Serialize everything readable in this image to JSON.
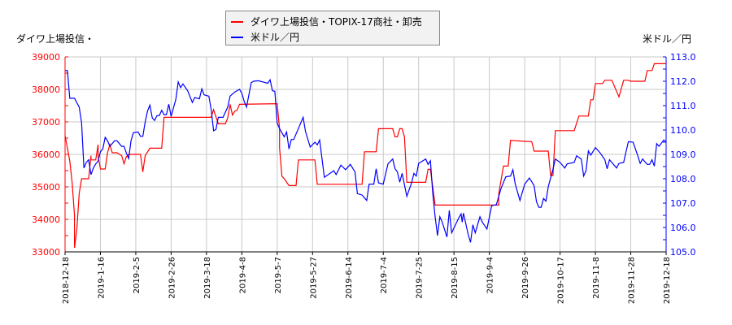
{
  "chart_data": {
    "type": "line",
    "title": "",
    "legend": {
      "placement": "top-center",
      "entries": [
        "ダイワ上場投信・TOPIX-17商社・卸売",
        "米ドル／円"
      ]
    },
    "y_left_label": "ダイワ上場投信・",
    "y_right_label": "米ドル／円",
    "y_left": {
      "range": [
        33000,
        39000
      ],
      "ticks": [
        "33000",
        "34000",
        "35000",
        "36000",
        "37000",
        "38000",
        "39000"
      ],
      "color": "#ff0000"
    },
    "y_right": {
      "range": [
        105.0,
        113.0
      ],
      "ticks": [
        "105.0",
        "106.0",
        "107.0",
        "108.0",
        "109.0",
        "110.0",
        "111.0",
        "112.0",
        "113.0"
      ],
      "color": "#0000ff"
    },
    "x_range": [
      0,
      255
    ],
    "x_ticks": [
      {
        "i": 0,
        "label": "2018-12-18"
      },
      {
        "i": 15,
        "label": "2019-1-16"
      },
      {
        "i": 30,
        "label": "2019-2-5"
      },
      {
        "i": 45,
        "label": "2019-2-26"
      },
      {
        "i": 60,
        "label": "2019-3-18"
      },
      {
        "i": 75,
        "label": "2019-4-8"
      },
      {
        "i": 90,
        "label": "2019-5-7"
      },
      {
        "i": 105,
        "label": "2019-5-27"
      },
      {
        "i": 120,
        "label": "2019-6-14"
      },
      {
        "i": 135,
        "label": "2019-7-4"
      },
      {
        "i": 150,
        "label": "2019-7-25"
      },
      {
        "i": 165,
        "label": "2019-8-15"
      },
      {
        "i": 180,
        "label": "2019-9-4"
      },
      {
        "i": 195,
        "label": "2019-9-26"
      },
      {
        "i": 210,
        "label": "2019-10-17"
      },
      {
        "i": 225,
        "label": "2019-11-8"
      },
      {
        "i": 240,
        "label": "2019-11-28"
      },
      {
        "i": 255,
        "label": "2019-12-18"
      }
    ],
    "grid": true,
    "series": [
      {
        "name": "ダイワ上場投信・TOPIX-17商社・卸売",
        "axis": "left",
        "color": "#ff0000",
        "points": [
          [
            0,
            36580
          ],
          [
            2,
            35800
          ],
          [
            3,
            35125
          ],
          [
            4,
            34125
          ],
          [
            4,
            33125
          ],
          [
            5,
            33700
          ],
          [
            6,
            34800
          ],
          [
            7,
            35250
          ],
          [
            10,
            35250
          ],
          [
            11,
            35960
          ],
          [
            11,
            35830
          ],
          [
            13,
            35830
          ],
          [
            14,
            36300
          ],
          [
            14,
            35960
          ],
          [
            15,
            35550
          ],
          [
            17,
            35550
          ],
          [
            18,
            36050
          ],
          [
            19,
            36300
          ],
          [
            20,
            36050
          ],
          [
            22,
            36050
          ],
          [
            24,
            35960
          ],
          [
            25,
            35710
          ],
          [
            26,
            35925
          ],
          [
            27,
            36000
          ],
          [
            32,
            36000
          ],
          [
            33,
            35460
          ],
          [
            34,
            35960
          ],
          [
            36,
            36190
          ],
          [
            41,
            36190
          ],
          [
            42,
            37140
          ],
          [
            62,
            37140
          ],
          [
            63,
            37375
          ],
          [
            65,
            36940
          ],
          [
            68,
            36940
          ],
          [
            69,
            37125
          ],
          [
            70,
            37540
          ],
          [
            71,
            37210
          ],
          [
            72,
            37330
          ],
          [
            73,
            37360
          ],
          [
            74,
            37540
          ],
          [
            90,
            37560
          ],
          [
            91,
            36790
          ],
          [
            91,
            36210
          ],
          [
            92,
            35330
          ],
          [
            93,
            35250
          ],
          [
            95,
            35040
          ],
          [
            98,
            35040
          ],
          [
            99,
            35830
          ],
          [
            106,
            35830
          ],
          [
            107,
            35080
          ],
          [
            126,
            35080
          ],
          [
            127,
            36080
          ],
          [
            132,
            36080
          ],
          [
            133,
            36790
          ],
          [
            139,
            36790
          ],
          [
            140,
            36540
          ],
          [
            141,
            36540
          ],
          [
            142,
            36790
          ],
          [
            143,
            36790
          ],
          [
            144,
            36540
          ],
          [
            145,
            35140
          ],
          [
            153,
            35140
          ],
          [
            154,
            35540
          ],
          [
            155,
            35540
          ],
          [
            157,
            34440
          ],
          [
            184,
            34440
          ],
          [
            184,
            34790
          ],
          [
            186,
            35640
          ],
          [
            188,
            35640
          ],
          [
            189,
            36430
          ],
          [
            198,
            36390
          ],
          [
            199,
            36100
          ],
          [
            205,
            36100
          ],
          [
            206,
            35350
          ],
          [
            207,
            35350
          ],
          [
            208,
            36730
          ],
          [
            216,
            36730
          ],
          [
            218,
            37180
          ],
          [
            222,
            37180
          ],
          [
            223,
            37680
          ],
          [
            224,
            37680
          ],
          [
            225,
            38180
          ],
          [
            228,
            38180
          ],
          [
            229,
            38280
          ],
          [
            232,
            38280
          ],
          [
            235,
            37770
          ],
          [
            237,
            38280
          ],
          [
            239,
            38280
          ],
          [
            240,
            38250
          ],
          [
            246,
            38250
          ],
          [
            247,
            38580
          ],
          [
            249,
            38580
          ],
          [
            250,
            38790
          ],
          [
            255,
            38790
          ]
        ]
      },
      {
        "name": "米ドル／円",
        "axis": "right",
        "color": "#0000ff",
        "points": [
          [
            0,
            112.44
          ],
          [
            1,
            112.44
          ],
          [
            2,
            111.3
          ],
          [
            4,
            111.3
          ],
          [
            6,
            110.94
          ],
          [
            7,
            110.3
          ],
          [
            8,
            108.44
          ],
          [
            9,
            108.67
          ],
          [
            10,
            108.78
          ],
          [
            11,
            108.17
          ],
          [
            12,
            108.44
          ],
          [
            13,
            108.61
          ],
          [
            14,
            108.72
          ],
          [
            15,
            109.11
          ],
          [
            16,
            109.22
          ],
          [
            17,
            109.7
          ],
          [
            18,
            109.56
          ],
          [
            19,
            109.33
          ],
          [
            21,
            109.56
          ],
          [
            22,
            109.56
          ],
          [
            24,
            109.33
          ],
          [
            25,
            109.33
          ],
          [
            26,
            109.06
          ],
          [
            27,
            108.83
          ],
          [
            28,
            109.56
          ],
          [
            29,
            109.89
          ],
          [
            31,
            109.92
          ],
          [
            32,
            109.74
          ],
          [
            33,
            109.74
          ],
          [
            34,
            110.33
          ],
          [
            35,
            110.78
          ],
          [
            36,
            111.02
          ],
          [
            37,
            110.5
          ],
          [
            38,
            110.39
          ],
          [
            39,
            110.59
          ],
          [
            40,
            110.59
          ],
          [
            41,
            110.81
          ],
          [
            42,
            110.63
          ],
          [
            43,
            110.63
          ],
          [
            44,
            111.06
          ],
          [
            45,
            110.56
          ],
          [
            47,
            111.26
          ],
          [
            48,
            111.97
          ],
          [
            49,
            111.74
          ],
          [
            50,
            111.89
          ],
          [
            52,
            111.61
          ],
          [
            54,
            111.13
          ],
          [
            55,
            111.33
          ],
          [
            57,
            111.28
          ],
          [
            58,
            111.69
          ],
          [
            59,
            111.44
          ],
          [
            61,
            111.39
          ],
          [
            62,
            110.83
          ],
          [
            63,
            109.97
          ],
          [
            64,
            110.02
          ],
          [
            65,
            110.52
          ],
          [
            67,
            110.52
          ],
          [
            69,
            110.94
          ],
          [
            70,
            111.39
          ],
          [
            72,
            111.56
          ],
          [
            74,
            111.67
          ],
          [
            75,
            111.5
          ],
          [
            76,
            111.17
          ],
          [
            77,
            110.94
          ],
          [
            79,
            111.94
          ],
          [
            80,
            112.0
          ],
          [
            82,
            112.02
          ],
          [
            86,
            111.92
          ],
          [
            87,
            112.06
          ],
          [
            88,
            111.61
          ],
          [
            89,
            111.59
          ],
          [
            90,
            110.28
          ],
          [
            91,
            110.06
          ],
          [
            93,
            109.72
          ],
          [
            94,
            109.92
          ],
          [
            95,
            109.22
          ],
          [
            96,
            109.61
          ],
          [
            97,
            109.61
          ],
          [
            99,
            110.06
          ],
          [
            101,
            110.52
          ],
          [
            102,
            109.94
          ],
          [
            104,
            109.3
          ],
          [
            106,
            109.5
          ],
          [
            107,
            109.39
          ],
          [
            108,
            109.59
          ],
          [
            110,
            108.06
          ],
          [
            114,
            108.33
          ],
          [
            115,
            108.17
          ],
          [
            117,
            108.56
          ],
          [
            119,
            108.37
          ],
          [
            121,
            108.59
          ],
          [
            123,
            108.28
          ],
          [
            124,
            107.39
          ],
          [
            126,
            107.33
          ],
          [
            128,
            107.11
          ],
          [
            129,
            107.78
          ],
          [
            131,
            107.78
          ],
          [
            132,
            108.41
          ],
          [
            133,
            107.83
          ],
          [
            135,
            107.78
          ],
          [
            137,
            108.61
          ],
          [
            139,
            108.81
          ],
          [
            140,
            108.41
          ],
          [
            141,
            108.28
          ],
          [
            142,
            107.86
          ],
          [
            143,
            108.22
          ],
          [
            145,
            107.28
          ],
          [
            147,
            107.83
          ],
          [
            148,
            108.22
          ],
          [
            149,
            108.11
          ],
          [
            150,
            108.63
          ],
          [
            153,
            108.81
          ],
          [
            154,
            108.59
          ],
          [
            155,
            108.74
          ],
          [
            156,
            107.39
          ],
          [
            157,
            106.44
          ],
          [
            158,
            105.67
          ],
          [
            159,
            106.44
          ],
          [
            160,
            106.22
          ],
          [
            162,
            105.61
          ],
          [
            163,
            106.7
          ],
          [
            164,
            105.78
          ],
          [
            167,
            106.39
          ],
          [
            168,
            106.56
          ],
          [
            168.5,
            106.22
          ],
          [
            169,
            106.59
          ],
          [
            171,
            105.72
          ],
          [
            172,
            105.39
          ],
          [
            173,
            106.11
          ],
          [
            174,
            105.78
          ],
          [
            176,
            106.44
          ],
          [
            177,
            106.22
          ],
          [
            179,
            105.94
          ],
          [
            181,
            106.89
          ],
          [
            183,
            106.94
          ],
          [
            185,
            107.61
          ],
          [
            187,
            108.08
          ],
          [
            189,
            108.11
          ],
          [
            190,
            108.37
          ],
          [
            191,
            107.78
          ],
          [
            193,
            107.11
          ],
          [
            195,
            107.78
          ],
          [
            197,
            108.03
          ],
          [
            199,
            107.72
          ],
          [
            200,
            107.06
          ],
          [
            201,
            106.83
          ],
          [
            202,
            106.83
          ],
          [
            203,
            107.19
          ],
          [
            204,
            107.08
          ],
          [
            205,
            107.67
          ],
          [
            207,
            108.39
          ],
          [
            208,
            108.81
          ],
          [
            210,
            108.67
          ],
          [
            212,
            108.44
          ],
          [
            213,
            108.61
          ],
          [
            216,
            108.67
          ],
          [
            217,
            108.94
          ],
          [
            219,
            108.81
          ],
          [
            220,
            108.11
          ],
          [
            221,
            108.33
          ],
          [
            222,
            109.14
          ],
          [
            223,
            108.97
          ],
          [
            225,
            109.28
          ],
          [
            227,
            109.06
          ],
          [
            229,
            108.78
          ],
          [
            230,
            108.41
          ],
          [
            231,
            108.78
          ],
          [
            234,
            108.44
          ],
          [
            235,
            108.63
          ],
          [
            237,
            108.67
          ],
          [
            238,
            109.11
          ],
          [
            239,
            109.52
          ],
          [
            241,
            109.5
          ],
          [
            243,
            108.94
          ],
          [
            244,
            108.63
          ],
          [
            245,
            108.81
          ],
          [
            247,
            108.59
          ],
          [
            248,
            108.59
          ],
          [
            249,
            108.78
          ],
          [
            250,
            108.52
          ],
          [
            251,
            109.44
          ],
          [
            252,
            109.33
          ],
          [
            254,
            109.59
          ],
          [
            255,
            109.52
          ]
        ]
      }
    ]
  }
}
